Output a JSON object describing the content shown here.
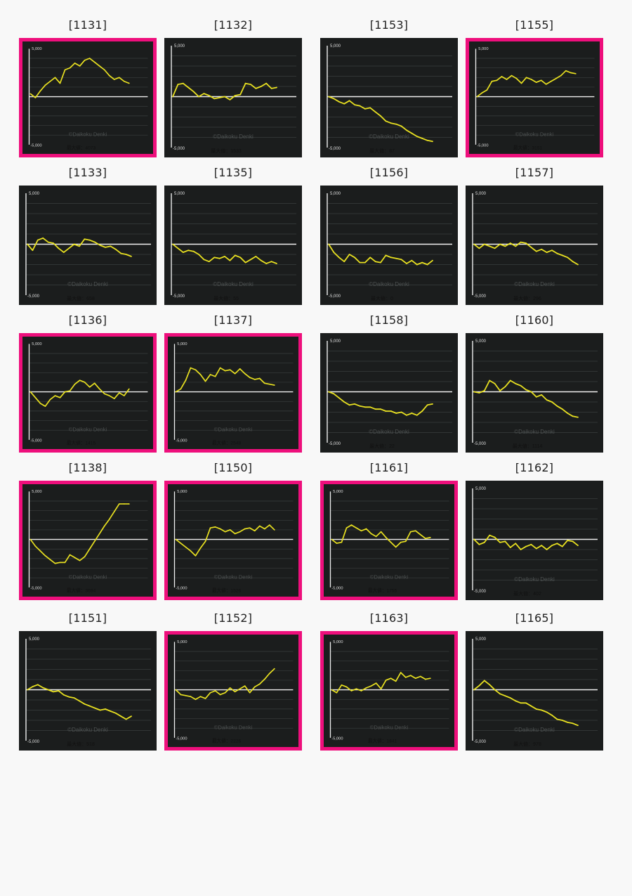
{
  "common": {
    "y_max_label": "5,000",
    "y_min_label": "-5,000",
    "watermark": "©Daikoku Denki",
    "line_color": "#e8e021",
    "highlight_color": "#ee0f7c"
  },
  "chart_data": [
    {
      "id": "[1131]",
      "type": "line",
      "highlighted": true,
      "ylim": [
        -5000,
        5000
      ],
      "max_label": "最大値：4073",
      "x": [
        0,
        5,
        10,
        15,
        20,
        25,
        30,
        35,
        40,
        45,
        50,
        55,
        60,
        65,
        70,
        75,
        80,
        85,
        90,
        95,
        100
      ],
      "y": [
        300,
        -100,
        600,
        1200,
        1600,
        2000,
        1400,
        2800,
        3000,
        3500,
        3200,
        3800,
        4000,
        3600,
        3200,
        2800,
        2200,
        1800,
        2000,
        1600,
        1400
      ]
    },
    {
      "id": "[1132]",
      "type": "line",
      "highlighted": false,
      "ylim": [
        -5000,
        5000
      ],
      "max_label": "最大値：1533",
      "x": [
        0,
        5,
        10,
        15,
        20,
        25,
        30,
        35,
        40,
        45,
        50,
        55,
        60,
        65,
        70,
        75,
        80,
        85,
        90,
        95,
        100
      ],
      "y": [
        0,
        1200,
        1300,
        900,
        500,
        0,
        300,
        100,
        -200,
        -100,
        0,
        -300,
        100,
        200,
        1300,
        1200,
        800,
        1000,
        1300,
        800,
        900
      ]
    },
    {
      "id": "[1153]",
      "type": "line",
      "highlighted": false,
      "ylim": [
        -5000,
        5000
      ],
      "max_label": "最大値：87",
      "x": [
        0,
        5,
        10,
        15,
        20,
        25,
        30,
        35,
        40,
        45,
        50,
        55,
        60,
        65,
        70,
        75,
        80,
        85,
        90,
        95,
        100
      ],
      "y": [
        0,
        -200,
        -500,
        -700,
        -400,
        -800,
        -900,
        -1200,
        -1100,
        -1500,
        -1900,
        -2400,
        -2600,
        -2700,
        -2900,
        -3300,
        -3600,
        -3900,
        -4100,
        -4300,
        -4400
      ]
    },
    {
      "id": "[1155]",
      "type": "line",
      "highlighted": true,
      "ylim": [
        -5000,
        5000
      ],
      "max_label": "最大値：3151",
      "x": [
        0,
        5,
        10,
        15,
        20,
        25,
        30,
        35,
        40,
        45,
        50,
        55,
        60,
        65,
        70,
        75,
        80,
        85,
        90,
        95,
        100
      ],
      "y": [
        0,
        400,
        700,
        1600,
        1700,
        2100,
        1800,
        2200,
        1900,
        1400,
        2000,
        1800,
        1500,
        1700,
        1300,
        1600,
        1900,
        2200,
        2700,
        2500,
        2400
      ]
    },
    {
      "id": "[1133]",
      "type": "line",
      "highlighted": false,
      "ylim": [
        -5000,
        5000
      ],
      "max_label": "最大値：658",
      "x": [
        0,
        5,
        10,
        15,
        20,
        25,
        30,
        35,
        40,
        45,
        50,
        55,
        60,
        65,
        70,
        75,
        80,
        85,
        90,
        95,
        100
      ],
      "y": [
        0,
        -600,
        400,
        600,
        200,
        100,
        -400,
        -800,
        -400,
        0,
        -200,
        500,
        400,
        200,
        -100,
        -300,
        -200,
        -500,
        -900,
        -1000,
        -1200
      ]
    },
    {
      "id": "[1135]",
      "type": "line",
      "highlighted": false,
      "ylim": [
        -5000,
        5000
      ],
      "max_label": "最大値：55",
      "x": [
        0,
        5,
        10,
        15,
        20,
        25,
        30,
        35,
        40,
        45,
        50,
        55,
        60,
        65,
        70,
        75,
        80,
        85,
        90,
        95,
        100
      ],
      "y": [
        0,
        -400,
        -800,
        -600,
        -700,
        -1000,
        -1500,
        -1700,
        -1300,
        -1400,
        -1200,
        -1600,
        -1100,
        -1300,
        -1800,
        -1500,
        -1200,
        -1600,
        -1900,
        -1700,
        -1900
      ]
    },
    {
      "id": "[1156]",
      "type": "line",
      "highlighted": false,
      "ylim": [
        -5000,
        5000
      ],
      "max_label": "最大値：0",
      "x": [
        0,
        5,
        10,
        15,
        20,
        25,
        30,
        35,
        40,
        45,
        50,
        55,
        60,
        65,
        70,
        75,
        80,
        85,
        90,
        95,
        100
      ],
      "y": [
        0,
        -800,
        -1300,
        -1700,
        -1000,
        -1300,
        -1800,
        -1800,
        -1300,
        -1700,
        -1800,
        -1100,
        -1300,
        -1400,
        -1500,
        -1900,
        -1600,
        -2000,
        -1800,
        -2000,
        -1600
      ]
    },
    {
      "id": "[1157]",
      "type": "line",
      "highlighted": false,
      "ylim": [
        -5000,
        5000
      ],
      "max_label": "最大値：296",
      "x": [
        0,
        5,
        10,
        15,
        20,
        25,
        30,
        35,
        40,
        45,
        50,
        55,
        60,
        65,
        70,
        75,
        80,
        85,
        90,
        95,
        100
      ],
      "y": [
        0,
        -400,
        0,
        -200,
        -400,
        0,
        -200,
        100,
        -200,
        200,
        100,
        -300,
        -700,
        -500,
        -800,
        -600,
        -900,
        -1100,
        -1300,
        -1700,
        -2000
      ]
    },
    {
      "id": "[1136]",
      "type": "line",
      "highlighted": true,
      "ylim": [
        -5000,
        5000
      ],
      "max_label": "最大値：1415",
      "x": [
        0,
        5,
        10,
        15,
        20,
        25,
        30,
        35,
        40,
        45,
        50,
        55,
        60,
        65,
        70,
        75,
        80,
        85,
        90,
        95,
        100
      ],
      "y": [
        0,
        -600,
        -1200,
        -1500,
        -800,
        -400,
        -600,
        0,
        100,
        800,
        1200,
        1000,
        500,
        900,
        300,
        -200,
        -400,
        -700,
        -100,
        -400,
        300
      ]
    },
    {
      "id": "[1137]",
      "type": "line",
      "highlighted": true,
      "ylim": [
        -5000,
        5000
      ],
      "max_label": "最大値：2548",
      "x": [
        0,
        5,
        10,
        15,
        20,
        25,
        30,
        35,
        40,
        45,
        50,
        55,
        60,
        65,
        70,
        75,
        80,
        85,
        90,
        95,
        100
      ],
      "y": [
        0,
        300,
        1200,
        2500,
        2300,
        1800,
        1100,
        1800,
        1600,
        2500,
        2200,
        2300,
        1900,
        2400,
        1900,
        1500,
        1300,
        1400,
        900,
        800,
        700
      ]
    },
    {
      "id": "[1158]",
      "type": "line",
      "highlighted": false,
      "ylim": [
        -5000,
        5000
      ],
      "max_label": "最大値：22",
      "x": [
        0,
        5,
        10,
        15,
        20,
        25,
        30,
        35,
        40,
        45,
        50,
        55,
        60,
        65,
        70,
        75,
        80,
        85,
        90,
        95,
        100
      ],
      "y": [
        0,
        -200,
        -600,
        -1000,
        -1300,
        -1200,
        -1400,
        -1500,
        -1500,
        -1700,
        -1700,
        -1900,
        -1900,
        -2100,
        -2000,
        -2300,
        -2100,
        -2300,
        -1900,
        -1300,
        -1200
      ]
    },
    {
      "id": "[1160]",
      "type": "line",
      "highlighted": false,
      "ylim": [
        -5000,
        5000
      ],
      "max_label": "最大値：1114",
      "x": [
        0,
        5,
        10,
        15,
        20,
        25,
        30,
        35,
        40,
        45,
        50,
        55,
        60,
        65,
        70,
        75,
        80,
        85,
        90,
        95,
        100
      ],
      "y": [
        0,
        -100,
        100,
        1100,
        800,
        100,
        500,
        1100,
        800,
        600,
        200,
        0,
        -500,
        -300,
        -800,
        -1000,
        -1400,
        -1700,
        -2100,
        -2400,
        -2500
      ]
    },
    {
      "id": "[1138]",
      "type": "line",
      "highlighted": true,
      "ylim": [
        -5000,
        5000
      ],
      "max_label": "最大値：3694",
      "x": [
        0,
        5,
        10,
        15,
        20,
        25,
        30,
        35,
        40,
        45,
        50,
        55,
        60,
        65,
        70,
        75,
        80,
        85,
        90,
        95,
        100
      ],
      "y": [
        0,
        -700,
        -1200,
        -1700,
        -2100,
        -2500,
        -2400,
        -2400,
        -1600,
        -1900,
        -2200,
        -1800,
        -1000,
        -200,
        600,
        1400,
        2100,
        2900,
        3700,
        3700,
        3700
      ]
    },
    {
      "id": "[1150]",
      "type": "line",
      "highlighted": true,
      "ylim": [
        -5000,
        5000
      ],
      "max_label": "最大値：1526",
      "x": [
        0,
        5,
        10,
        15,
        20,
        25,
        30,
        35,
        40,
        45,
        50,
        55,
        60,
        65,
        70,
        75,
        80,
        85,
        90,
        95,
        100
      ],
      "y": [
        0,
        -400,
        -800,
        -1200,
        -1700,
        -900,
        -200,
        1200,
        1300,
        1100,
        800,
        1000,
        600,
        800,
        1100,
        1200,
        900,
        1400,
        1100,
        1500,
        1000
      ]
    },
    {
      "id": "[1161]",
      "type": "line",
      "highlighted": true,
      "ylim": [
        -5000,
        5000
      ],
      "max_label": "最大値：1755",
      "x": [
        0,
        5,
        10,
        15,
        20,
        25,
        30,
        35,
        40,
        45,
        50,
        55,
        60,
        65,
        70,
        75,
        80,
        85,
        90,
        95,
        100
      ],
      "y": [
        0,
        -400,
        -300,
        1200,
        1500,
        1200,
        900,
        1100,
        600,
        300,
        800,
        200,
        -300,
        -800,
        -300,
        -200,
        800,
        900,
        500,
        100,
        200
      ]
    },
    {
      "id": "[1162]",
      "type": "line",
      "highlighted": false,
      "ylim": [
        -5000,
        5000
      ],
      "max_label": "最大値：402",
      "x": [
        0,
        5,
        10,
        15,
        20,
        25,
        30,
        35,
        40,
        45,
        50,
        55,
        60,
        65,
        70,
        75,
        80,
        85,
        90,
        95,
        100
      ],
      "y": [
        0,
        -500,
        -300,
        400,
        200,
        -300,
        -200,
        -800,
        -400,
        -1000,
        -700,
        -500,
        -900,
        -600,
        -1000,
        -600,
        -400,
        -700,
        -100,
        -200,
        -600
      ]
    },
    {
      "id": "[1151]",
      "type": "line",
      "highlighted": false,
      "ylim": [
        -5000,
        5000
      ],
      "max_label": "最大値：518",
      "x": [
        0,
        5,
        10,
        15,
        20,
        25,
        30,
        35,
        40,
        45,
        50,
        55,
        60,
        65,
        70,
        75,
        80,
        85,
        90,
        95,
        100
      ],
      "y": [
        0,
        300,
        500,
        200,
        0,
        -200,
        -100,
        -500,
        -700,
        -800,
        -1100,
        -1400,
        -1600,
        -1800,
        -2000,
        -1900,
        -2100,
        -2300,
        -2600,
        -2900,
        -2600
      ]
    },
    {
      "id": "[1152]",
      "type": "line",
      "highlighted": true,
      "ylim": [
        -5000,
        5000
      ],
      "max_label": "最大値：2226",
      "x": [
        0,
        5,
        10,
        15,
        20,
        25,
        30,
        35,
        40,
        45,
        50,
        55,
        60,
        65,
        70,
        75,
        80,
        85,
        90,
        95,
        100
      ],
      "y": [
        0,
        -500,
        -600,
        -700,
        -1000,
        -700,
        -900,
        -300,
        -100,
        -500,
        -300,
        200,
        -200,
        100,
        400,
        -300,
        300,
        600,
        1100,
        1700,
        2200
      ]
    },
    {
      "id": "[1163]",
      "type": "line",
      "highlighted": true,
      "ylim": [
        -5000,
        5000
      ],
      "max_label": "最大値：1841",
      "x": [
        0,
        5,
        10,
        15,
        20,
        25,
        30,
        35,
        40,
        45,
        50,
        55,
        60,
        65,
        70,
        75,
        80,
        85,
        90,
        95,
        100
      ],
      "y": [
        0,
        -300,
        500,
        300,
        -100,
        100,
        -100,
        200,
        400,
        700,
        100,
        1000,
        1200,
        900,
        1800,
        1300,
        1500,
        1200,
        1400,
        1100,
        1200
      ]
    },
    {
      "id": "[1165]",
      "type": "line",
      "highlighted": false,
      "ylim": [
        -5000,
        5000
      ],
      "max_label": "最大値：978",
      "x": [
        0,
        5,
        10,
        15,
        20,
        25,
        30,
        35,
        40,
        45,
        50,
        55,
        60,
        65,
        70,
        75,
        80,
        85,
        90,
        95,
        100
      ],
      "y": [
        0,
        400,
        900,
        500,
        0,
        -400,
        -600,
        -800,
        -1100,
        -1300,
        -1300,
        -1600,
        -1900,
        -2000,
        -2200,
        -2500,
        -2900,
        -3000,
        -3200,
        -3300,
        -3500
      ]
    }
  ]
}
